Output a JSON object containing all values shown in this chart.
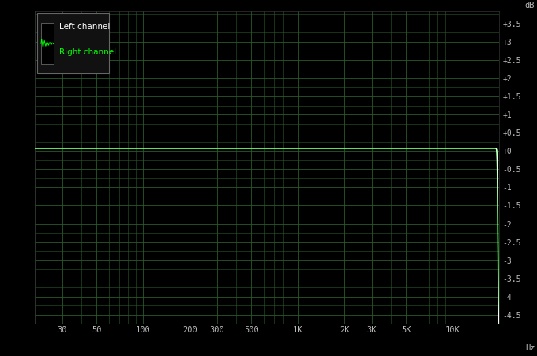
{
  "bg_color": "#000000",
  "grid_color": "#2a5a2a",
  "line_color_left": "#ffffff",
  "line_color_right": "#00ff00",
  "legend_text_left": "Left channel",
  "legend_text_right": "Right channel",
  "legend_text_color_left": "#ffffff",
  "legend_text_color_right": "#00ff00",
  "ylabel": "dB",
  "xlabel": "Hz",
  "yticks": [
    3.5,
    3.0,
    2.5,
    2.0,
    1.5,
    1.0,
    0.5,
    0.0,
    -0.5,
    -1.0,
    -1.5,
    -2.0,
    -2.5,
    -3.0,
    -3.5,
    -4.0,
    -4.5
  ],
  "ytick_labels": [
    "+3.5",
    "+3",
    "+2.5",
    "+2",
    "+1.5",
    "+1",
    "+0.5",
    "+0",
    "-0.5",
    "-1",
    "-1.5",
    "-2",
    "-2.5",
    "-3",
    "-3.5",
    "-4",
    "-4.5"
  ],
  "xmin": 20,
  "xmax": 20000,
  "ymin": -4.75,
  "ymax": 3.85,
  "flat_level": 0.07,
  "xtick_positions": [
    30,
    50,
    100,
    200,
    300,
    500,
    1000,
    2000,
    3000,
    5000,
    10000
  ],
  "xtick_labels": [
    "30",
    "50",
    "100",
    "200",
    "300",
    "500",
    "1K",
    "2K",
    "3K",
    "5K",
    "10K"
  ]
}
